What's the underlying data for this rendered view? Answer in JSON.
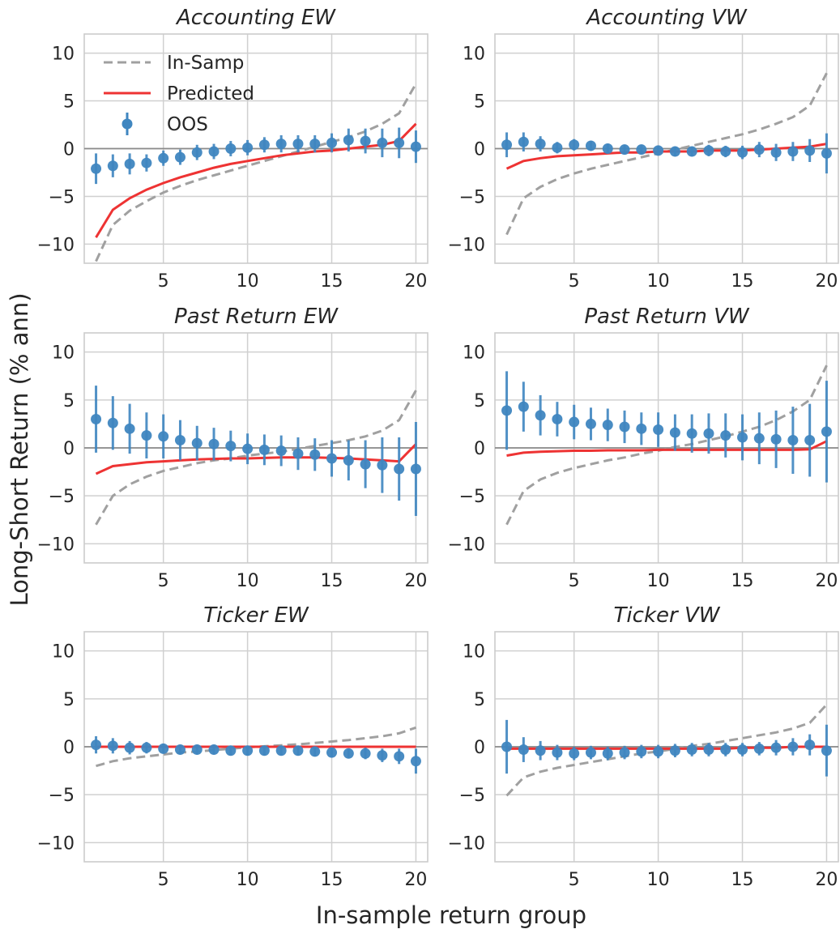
{
  "figure": {
    "xlabel": "In-sample return group",
    "ylabel": "Long-Short Return (% ann)",
    "legend": {
      "placement": "upper-left of first panel",
      "entries": [
        {
          "key": "insamp",
          "label": "In-Samp",
          "color": "#a0a0a0",
          "style": "dashed"
        },
        {
          "key": "pred",
          "label": "Predicted",
          "color": "#ee3333",
          "style": "solid"
        },
        {
          "key": "oos",
          "label": "OOS",
          "color": "#3f86c0",
          "style": "point-errorbar"
        }
      ]
    }
  },
  "chart_data": [
    {
      "type": "line",
      "title": "Accounting EW",
      "xlim": [
        0.3,
        20.7
      ],
      "ylim": [
        -12,
        12
      ],
      "xticks": [
        5,
        10,
        15,
        20
      ],
      "yticks": [
        -10,
        -5,
        0,
        5,
        10
      ],
      "grid": true,
      "x": [
        1,
        2,
        3,
        4,
        5,
        6,
        7,
        8,
        9,
        10,
        11,
        12,
        13,
        14,
        15,
        16,
        17,
        18,
        19,
        20
      ],
      "series": [
        {
          "key": "insamp",
          "values": [
            -11.8,
            -8.0,
            -6.5,
            -5.5,
            -4.6,
            -3.9,
            -3.3,
            -2.8,
            -2.3,
            -1.8,
            -1.3,
            -0.8,
            -0.3,
            0.2,
            0.7,
            1.2,
            1.8,
            2.6,
            3.7,
            6.8
          ]
        },
        {
          "key": "pred",
          "values": [
            -9.3,
            -6.4,
            -5.2,
            -4.3,
            -3.6,
            -3.0,
            -2.5,
            -2.0,
            -1.6,
            -1.3,
            -1.0,
            -0.7,
            -0.5,
            -0.3,
            -0.2,
            0.0,
            0.2,
            0.4,
            0.8,
            2.6
          ]
        },
        {
          "key": "oos",
          "values": [
            -2.1,
            -1.8,
            -1.6,
            -1.5,
            -1.0,
            -0.9,
            -0.4,
            -0.3,
            0.0,
            0.1,
            0.4,
            0.5,
            0.5,
            0.5,
            0.6,
            0.9,
            0.8,
            0.6,
            0.6,
            0.2
          ],
          "err": [
            1.6,
            1.2,
            1.1,
            0.9,
            0.8,
            0.8,
            0.8,
            0.8,
            0.8,
            0.8,
            0.8,
            0.9,
            0.9,
            0.9,
            1.0,
            1.2,
            1.3,
            1.5,
            1.6,
            1.7
          ]
        }
      ]
    },
    {
      "type": "line",
      "title": "Accounting VW",
      "xlim": [
        0.3,
        20.7
      ],
      "ylim": [
        -12,
        12
      ],
      "xticks": [
        5,
        10,
        15,
        20
      ],
      "yticks": [
        -10,
        -5,
        0,
        5,
        10
      ],
      "grid": true,
      "x": [
        1,
        2,
        3,
        4,
        5,
        6,
        7,
        8,
        9,
        10,
        11,
        12,
        13,
        14,
        15,
        16,
        17,
        18,
        19,
        20
      ],
      "series": [
        {
          "key": "insamp",
          "values": [
            -9.0,
            -5.2,
            -4.0,
            -3.2,
            -2.6,
            -2.1,
            -1.7,
            -1.3,
            -0.9,
            -0.5,
            -0.1,
            0.3,
            0.7,
            1.1,
            1.5,
            2.0,
            2.6,
            3.3,
            4.5,
            7.9
          ]
        },
        {
          "key": "pred",
          "values": [
            -2.1,
            -1.3,
            -1.0,
            -0.8,
            -0.7,
            -0.6,
            -0.5,
            -0.4,
            -0.4,
            -0.3,
            -0.3,
            -0.3,
            -0.2,
            -0.2,
            -0.2,
            -0.1,
            0.0,
            0.1,
            0.2,
            0.5
          ]
        },
        {
          "key": "oos",
          "values": [
            0.4,
            0.7,
            0.5,
            0.1,
            0.4,
            0.3,
            0.0,
            -0.1,
            -0.1,
            -0.2,
            -0.3,
            -0.3,
            -0.2,
            -0.3,
            -0.4,
            -0.1,
            -0.4,
            -0.3,
            -0.2,
            -0.5
          ],
          "err": [
            1.3,
            1.0,
            0.8,
            0.6,
            0.6,
            0.5,
            0.5,
            0.5,
            0.5,
            0.5,
            0.5,
            0.5,
            0.6,
            0.6,
            0.7,
            0.8,
            0.9,
            1.0,
            1.2,
            2.1
          ]
        }
      ]
    },
    {
      "type": "line",
      "title": "Past Return EW",
      "xlim": [
        0.3,
        20.7
      ],
      "ylim": [
        -12,
        12
      ],
      "xticks": [
        5,
        10,
        15,
        20
      ],
      "yticks": [
        -10,
        -5,
        0,
        5,
        10
      ],
      "grid": true,
      "x": [
        1,
        2,
        3,
        4,
        5,
        6,
        7,
        8,
        9,
        10,
        11,
        12,
        13,
        14,
        15,
        16,
        17,
        18,
        19,
        20
      ],
      "series": [
        {
          "key": "insamp",
          "values": [
            -8.0,
            -5.0,
            -3.8,
            -3.0,
            -2.4,
            -2.0,
            -1.6,
            -1.3,
            -1.1,
            -0.8,
            -0.6,
            -0.4,
            -0.1,
            0.2,
            0.5,
            0.8,
            1.2,
            1.8,
            2.9,
            6.0
          ]
        },
        {
          "key": "pred",
          "values": [
            -2.7,
            -1.9,
            -1.7,
            -1.5,
            -1.4,
            -1.3,
            -1.2,
            -1.15,
            -1.1,
            -1.1,
            -1.05,
            -1.0,
            -1.0,
            -1.0,
            -1.05,
            -1.1,
            -1.2,
            -1.3,
            -1.4,
            0.4
          ]
        },
        {
          "key": "oos",
          "values": [
            3.0,
            2.6,
            2.0,
            1.3,
            1.2,
            0.8,
            0.5,
            0.4,
            0.2,
            -0.1,
            -0.2,
            -0.3,
            -0.6,
            -0.7,
            -1.1,
            -1.3,
            -1.7,
            -1.8,
            -2.2,
            -2.2
          ],
          "err": [
            3.5,
            2.8,
            2.6,
            2.4,
            2.3,
            2.1,
            1.8,
            1.7,
            1.6,
            1.6,
            1.6,
            1.6,
            1.7,
            1.7,
            1.9,
            2.1,
            2.5,
            2.9,
            3.3,
            4.9
          ]
        }
      ]
    },
    {
      "type": "line",
      "title": "Past Return VW",
      "xlim": [
        0.3,
        20.7
      ],
      "ylim": [
        -12,
        12
      ],
      "xticks": [
        5,
        10,
        15,
        20
      ],
      "yticks": [
        -10,
        -5,
        0,
        5,
        10
      ],
      "grid": true,
      "x": [
        1,
        2,
        3,
        4,
        5,
        6,
        7,
        8,
        9,
        10,
        11,
        12,
        13,
        14,
        15,
        16,
        17,
        18,
        19,
        20
      ],
      "series": [
        {
          "key": "insamp",
          "values": [
            -8.0,
            -4.5,
            -3.3,
            -2.6,
            -2.1,
            -1.7,
            -1.3,
            -1.0,
            -0.6,
            -0.3,
            0.1,
            0.4,
            0.8,
            1.2,
            1.7,
            2.2,
            2.9,
            3.8,
            5.0,
            8.6
          ]
        },
        {
          "key": "pred",
          "values": [
            -0.8,
            -0.5,
            -0.4,
            -0.35,
            -0.3,
            -0.3,
            -0.25,
            -0.25,
            -0.25,
            -0.2,
            -0.2,
            -0.2,
            -0.2,
            -0.2,
            -0.2,
            -0.2,
            -0.2,
            -0.2,
            -0.15,
            0.7
          ]
        },
        {
          "key": "oos",
          "values": [
            3.9,
            4.3,
            3.4,
            3.0,
            2.7,
            2.5,
            2.4,
            2.2,
            2.0,
            1.9,
            1.6,
            1.5,
            1.5,
            1.3,
            1.1,
            1.0,
            0.9,
            0.8,
            0.8,
            1.7
          ],
          "err": [
            4.1,
            2.6,
            2.1,
            1.8,
            1.8,
            1.7,
            1.7,
            1.7,
            1.7,
            1.8,
            1.9,
            2.0,
            2.1,
            2.3,
            2.4,
            2.7,
            3.0,
            3.5,
            3.8,
            5.3
          ]
        }
      ]
    },
    {
      "type": "line",
      "title": "Ticker EW",
      "xlim": [
        0.3,
        20.7
      ],
      "ylim": [
        -12,
        12
      ],
      "xticks": [
        5,
        10,
        15,
        20
      ],
      "yticks": [
        -10,
        -5,
        0,
        5,
        10
      ],
      "grid": true,
      "x": [
        1,
        2,
        3,
        4,
        5,
        6,
        7,
        8,
        9,
        10,
        11,
        12,
        13,
        14,
        15,
        16,
        17,
        18,
        19,
        20
      ],
      "series": [
        {
          "key": "insamp",
          "values": [
            -2.0,
            -1.5,
            -1.2,
            -1.0,
            -0.8,
            -0.6,
            -0.5,
            -0.35,
            -0.2,
            -0.05,
            0.05,
            0.15,
            0.25,
            0.4,
            0.55,
            0.7,
            0.9,
            1.1,
            1.4,
            2.0
          ]
        },
        {
          "key": "pred",
          "values": [
            0.0,
            0.0,
            0.0,
            0.0,
            0.0,
            0.0,
            0.0,
            0.0,
            0.0,
            0.0,
            0.0,
            0.0,
            0.0,
            0.0,
            0.0,
            0.0,
            0.0,
            0.0,
            0.0,
            0.0
          ]
        },
        {
          "key": "oos",
          "values": [
            0.2,
            0.1,
            -0.1,
            -0.1,
            -0.2,
            -0.3,
            -0.3,
            -0.3,
            -0.4,
            -0.4,
            -0.4,
            -0.4,
            -0.4,
            -0.5,
            -0.6,
            -0.7,
            -0.7,
            -0.9,
            -1.0,
            -1.5
          ],
          "err": [
            0.9,
            0.8,
            0.7,
            0.6,
            0.5,
            0.5,
            0.5,
            0.5,
            0.5,
            0.5,
            0.5,
            0.5,
            0.5,
            0.5,
            0.5,
            0.5,
            0.6,
            0.7,
            0.8,
            1.3
          ]
        }
      ]
    },
    {
      "type": "line",
      "title": "Ticker VW",
      "xlim": [
        0.3,
        20.7
      ],
      "ylim": [
        -12,
        12
      ],
      "xticks": [
        5,
        10,
        15,
        20
      ],
      "yticks": [
        -10,
        -5,
        0,
        5,
        10
      ],
      "grid": true,
      "x": [
        1,
        2,
        3,
        4,
        5,
        6,
        7,
        8,
        9,
        10,
        11,
        12,
        13,
        14,
        15,
        16,
        17,
        18,
        19,
        20
      ],
      "series": [
        {
          "key": "insamp",
          "values": [
            -5.1,
            -3.2,
            -2.6,
            -2.2,
            -1.9,
            -1.6,
            -1.3,
            -1.0,
            -0.7,
            -0.5,
            -0.2,
            0.1,
            0.3,
            0.6,
            0.9,
            1.2,
            1.5,
            1.9,
            2.5,
            4.4
          ]
        },
        {
          "key": "pred",
          "values": [
            -0.2,
            -0.2,
            -0.2,
            -0.2,
            -0.2,
            -0.2,
            -0.2,
            -0.2,
            -0.2,
            -0.2,
            -0.2,
            -0.2,
            -0.2,
            -0.2,
            -0.1,
            -0.1,
            -0.1,
            0.0,
            0.0,
            0.0
          ]
        },
        {
          "key": "oos",
          "values": [
            0.0,
            -0.3,
            -0.4,
            -0.6,
            -0.7,
            -0.6,
            -0.7,
            -0.6,
            -0.5,
            -0.5,
            -0.4,
            -0.3,
            -0.3,
            -0.3,
            -0.3,
            -0.2,
            -0.1,
            0.0,
            0.2,
            -0.4
          ],
          "err": [
            2.8,
            1.3,
            1.0,
            0.8,
            0.7,
            0.7,
            0.7,
            0.7,
            0.7,
            0.7,
            0.7,
            0.7,
            0.7,
            0.7,
            0.7,
            0.7,
            0.8,
            0.9,
            1.1,
            2.7
          ]
        }
      ]
    }
  ]
}
